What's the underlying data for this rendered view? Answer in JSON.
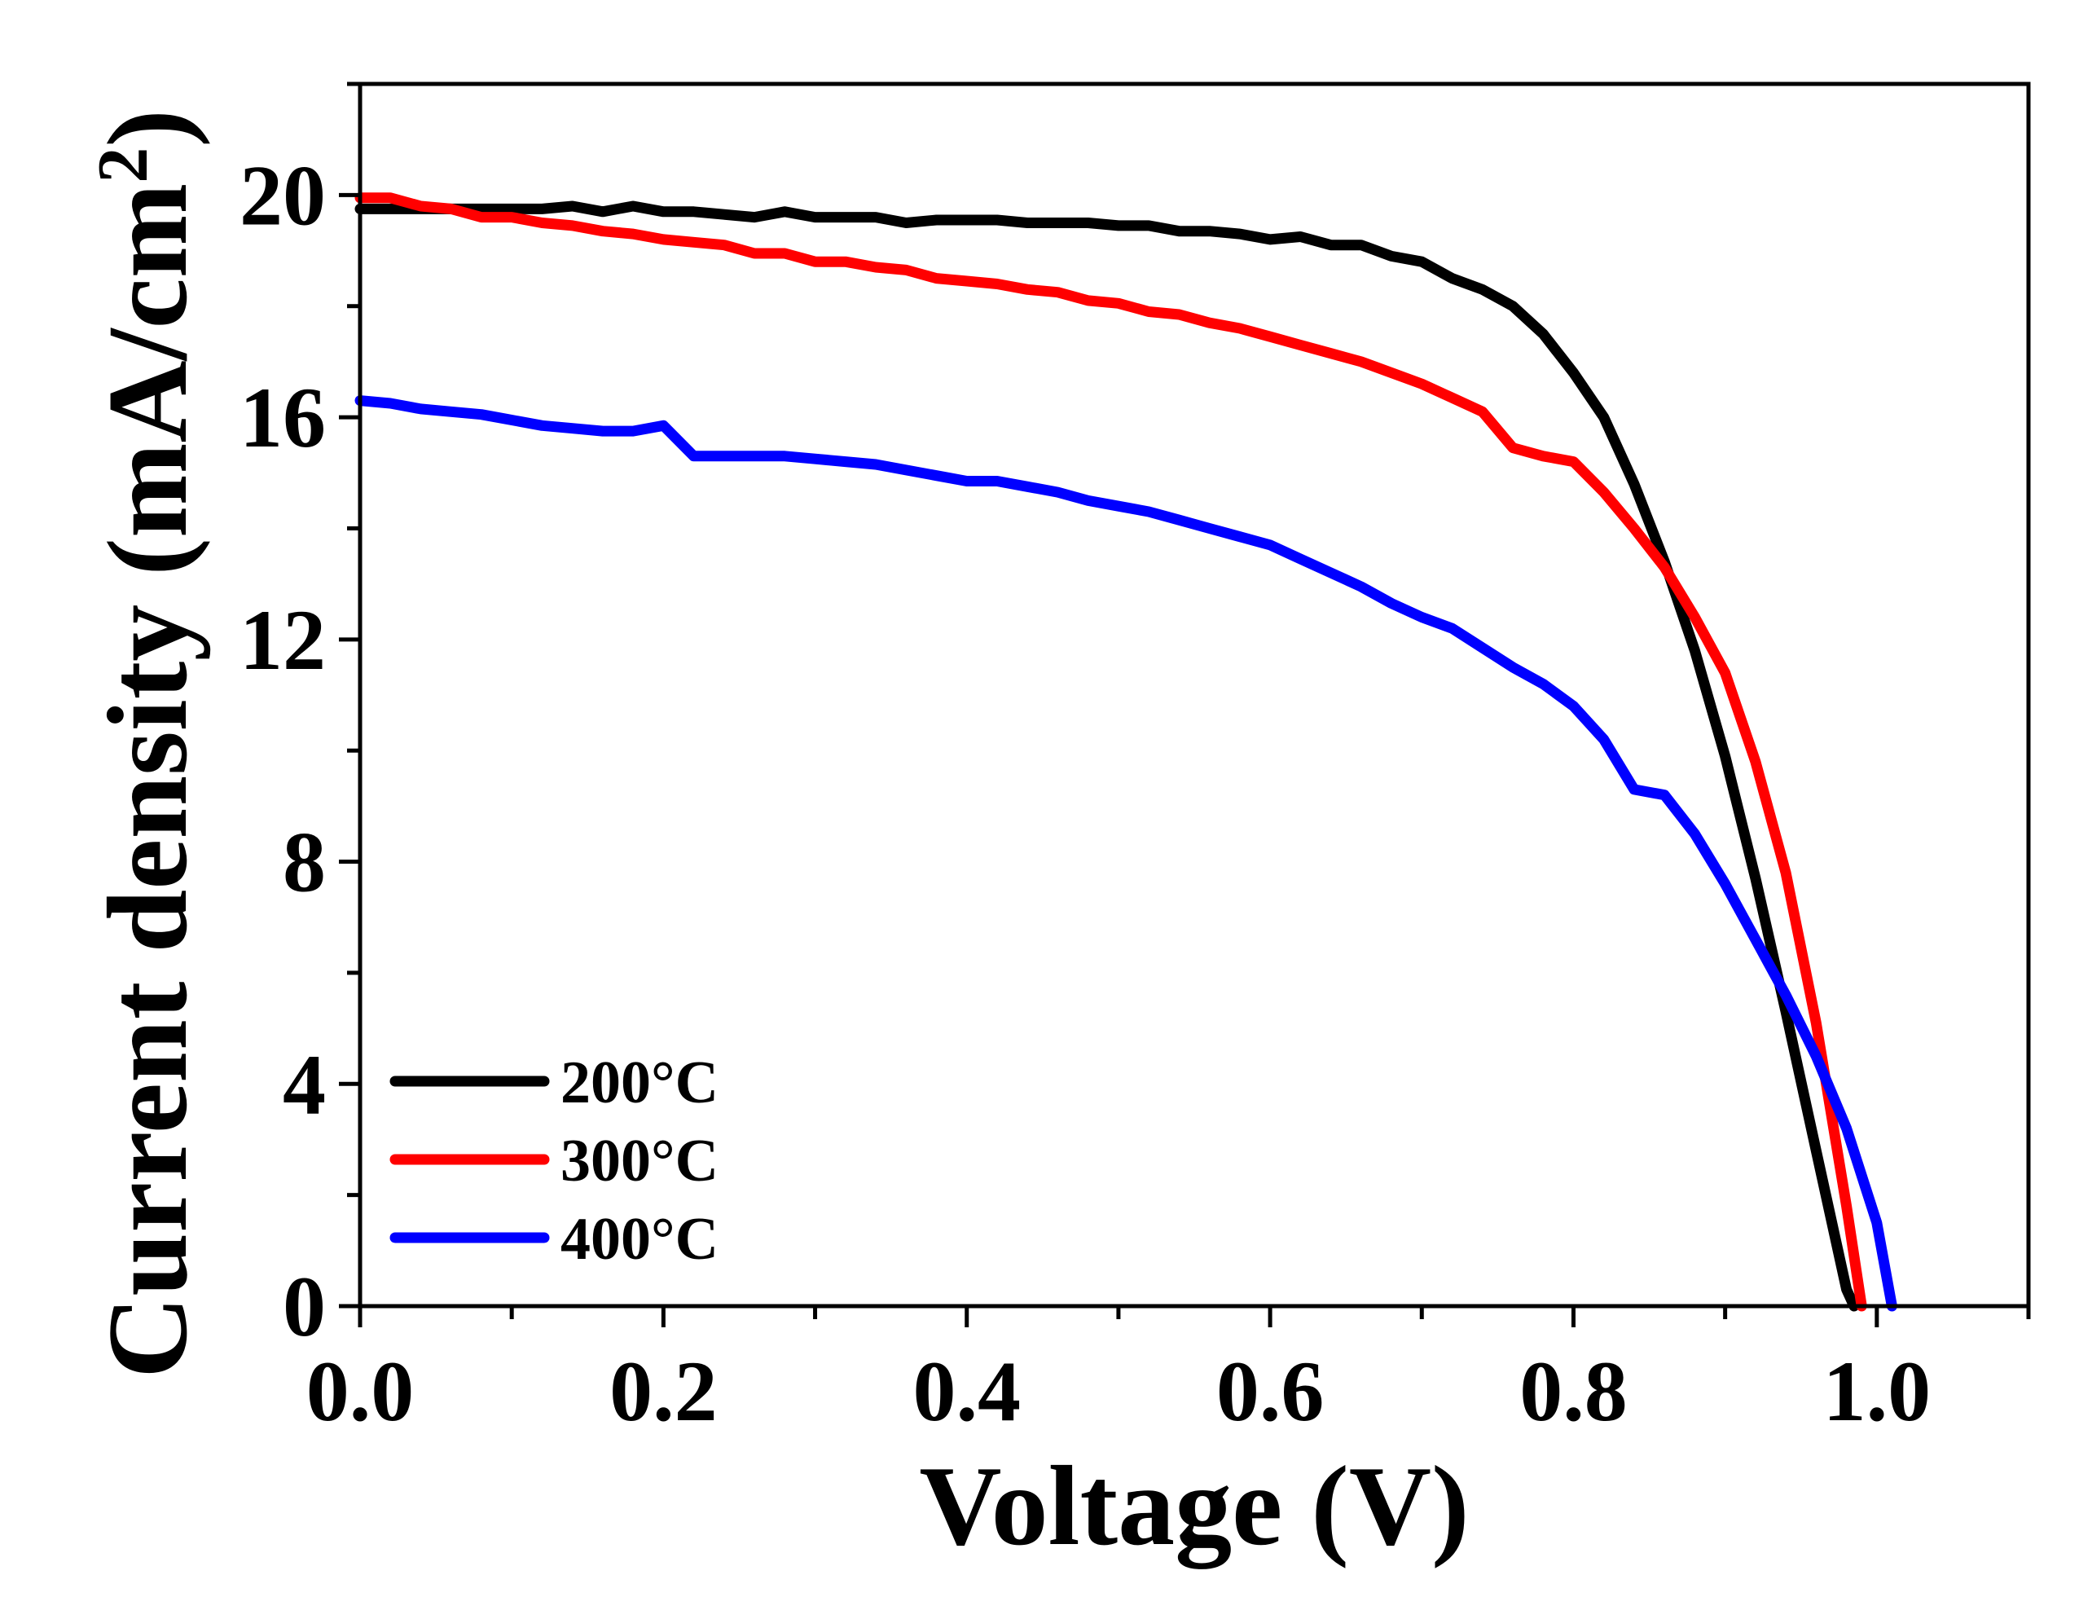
{
  "chart_data": {
    "type": "line",
    "title": "",
    "xlabel": "Voltage (V)",
    "ylabel": "Current density (mA/cm",
    "ylabel_superscript": "2",
    "ylabel_close": ")",
    "xlim": [
      0.0,
      1.1
    ],
    "ylim": [
      0,
      22
    ],
    "xticks": [
      0.0,
      0.2,
      0.4,
      0.6,
      0.8,
      1.0
    ],
    "xtick_labels": [
      "0.0",
      "0.2",
      "0.4",
      "0.6",
      "0.8",
      "1.0"
    ],
    "xminor": [
      0.1,
      0.3,
      0.5,
      0.7,
      0.9,
      1.1
    ],
    "yticks": [
      0,
      4,
      8,
      12,
      16,
      20
    ],
    "ytick_labels": [
      "0",
      "4",
      "8",
      "12",
      "16",
      "20"
    ],
    "yminor": [
      2,
      6,
      10,
      14,
      18,
      22
    ],
    "grid": false,
    "legend_position": "bottom-left",
    "series": [
      {
        "name": "200°C",
        "color": "#000000",
        "x": [
          0.0,
          0.02,
          0.04,
          0.06,
          0.08,
          0.1,
          0.12,
          0.14,
          0.16,
          0.18,
          0.2,
          0.22,
          0.24,
          0.26,
          0.28,
          0.3,
          0.32,
          0.34,
          0.36,
          0.38,
          0.4,
          0.42,
          0.44,
          0.46,
          0.48,
          0.5,
          0.52,
          0.54,
          0.56,
          0.58,
          0.6,
          0.62,
          0.64,
          0.66,
          0.68,
          0.7,
          0.72,
          0.74,
          0.76,
          0.78,
          0.8,
          0.82,
          0.84,
          0.86,
          0.88,
          0.9,
          0.92,
          0.94,
          0.96,
          0.98,
          0.985
        ],
        "y": [
          19.75,
          19.75,
          19.75,
          19.75,
          19.75,
          19.75,
          19.75,
          19.8,
          19.7,
          19.8,
          19.7,
          19.7,
          19.65,
          19.6,
          19.7,
          19.6,
          19.6,
          19.6,
          19.5,
          19.55,
          19.55,
          19.55,
          19.5,
          19.5,
          19.5,
          19.45,
          19.45,
          19.35,
          19.35,
          19.3,
          19.2,
          19.25,
          19.1,
          19.1,
          18.9,
          18.8,
          18.5,
          18.3,
          18.0,
          17.5,
          16.8,
          16.0,
          14.8,
          13.4,
          11.8,
          9.9,
          7.7,
          5.3,
          2.8,
          0.3,
          0.0
        ]
      },
      {
        "name": "300°C",
        "color": "#ff0000",
        "x": [
          0.0,
          0.02,
          0.04,
          0.06,
          0.08,
          0.1,
          0.12,
          0.14,
          0.16,
          0.18,
          0.2,
          0.22,
          0.24,
          0.26,
          0.28,
          0.3,
          0.32,
          0.34,
          0.36,
          0.38,
          0.4,
          0.42,
          0.44,
          0.46,
          0.48,
          0.5,
          0.52,
          0.54,
          0.56,
          0.58,
          0.6,
          0.62,
          0.64,
          0.66,
          0.68,
          0.7,
          0.72,
          0.74,
          0.76,
          0.78,
          0.8,
          0.82,
          0.84,
          0.86,
          0.88,
          0.9,
          0.92,
          0.94,
          0.96,
          0.98,
          0.99
        ],
        "y": [
          19.95,
          19.95,
          19.8,
          19.75,
          19.6,
          19.6,
          19.5,
          19.45,
          19.35,
          19.3,
          19.2,
          19.15,
          19.1,
          18.95,
          18.95,
          18.8,
          18.8,
          18.7,
          18.65,
          18.5,
          18.45,
          18.4,
          18.3,
          18.25,
          18.1,
          18.05,
          17.9,
          17.85,
          17.7,
          17.6,
          17.45,
          17.3,
          17.15,
          17.0,
          16.8,
          16.6,
          16.35,
          16.1,
          15.45,
          15.3,
          15.2,
          14.65,
          14.0,
          13.3,
          12.4,
          11.4,
          9.8,
          7.8,
          5.1,
          1.8,
          0.0
        ]
      },
      {
        "name": "400°C",
        "color": "#0000ff",
        "x": [
          0.0,
          0.02,
          0.04,
          0.06,
          0.08,
          0.1,
          0.12,
          0.14,
          0.16,
          0.18,
          0.2,
          0.22,
          0.24,
          0.26,
          0.28,
          0.3,
          0.32,
          0.34,
          0.36,
          0.38,
          0.4,
          0.42,
          0.44,
          0.46,
          0.48,
          0.5,
          0.52,
          0.54,
          0.56,
          0.58,
          0.6,
          0.62,
          0.64,
          0.66,
          0.68,
          0.7,
          0.72,
          0.74,
          0.76,
          0.78,
          0.8,
          0.82,
          0.84,
          0.86,
          0.88,
          0.9,
          0.92,
          0.94,
          0.96,
          0.98,
          1.0,
          1.01
        ],
        "y": [
          16.3,
          16.25,
          16.15,
          16.1,
          16.05,
          15.95,
          15.85,
          15.8,
          15.75,
          15.75,
          15.85,
          15.3,
          15.3,
          15.3,
          15.3,
          15.25,
          15.2,
          15.15,
          15.05,
          14.95,
          14.85,
          14.85,
          14.75,
          14.65,
          14.5,
          14.4,
          14.3,
          14.15,
          14.0,
          13.85,
          13.7,
          13.45,
          13.2,
          12.95,
          12.65,
          12.4,
          12.2,
          11.85,
          11.5,
          11.2,
          10.8,
          10.2,
          9.3,
          9.2,
          8.5,
          7.6,
          6.6,
          5.6,
          4.5,
          3.2,
          1.5,
          0.0
        ]
      }
    ]
  }
}
